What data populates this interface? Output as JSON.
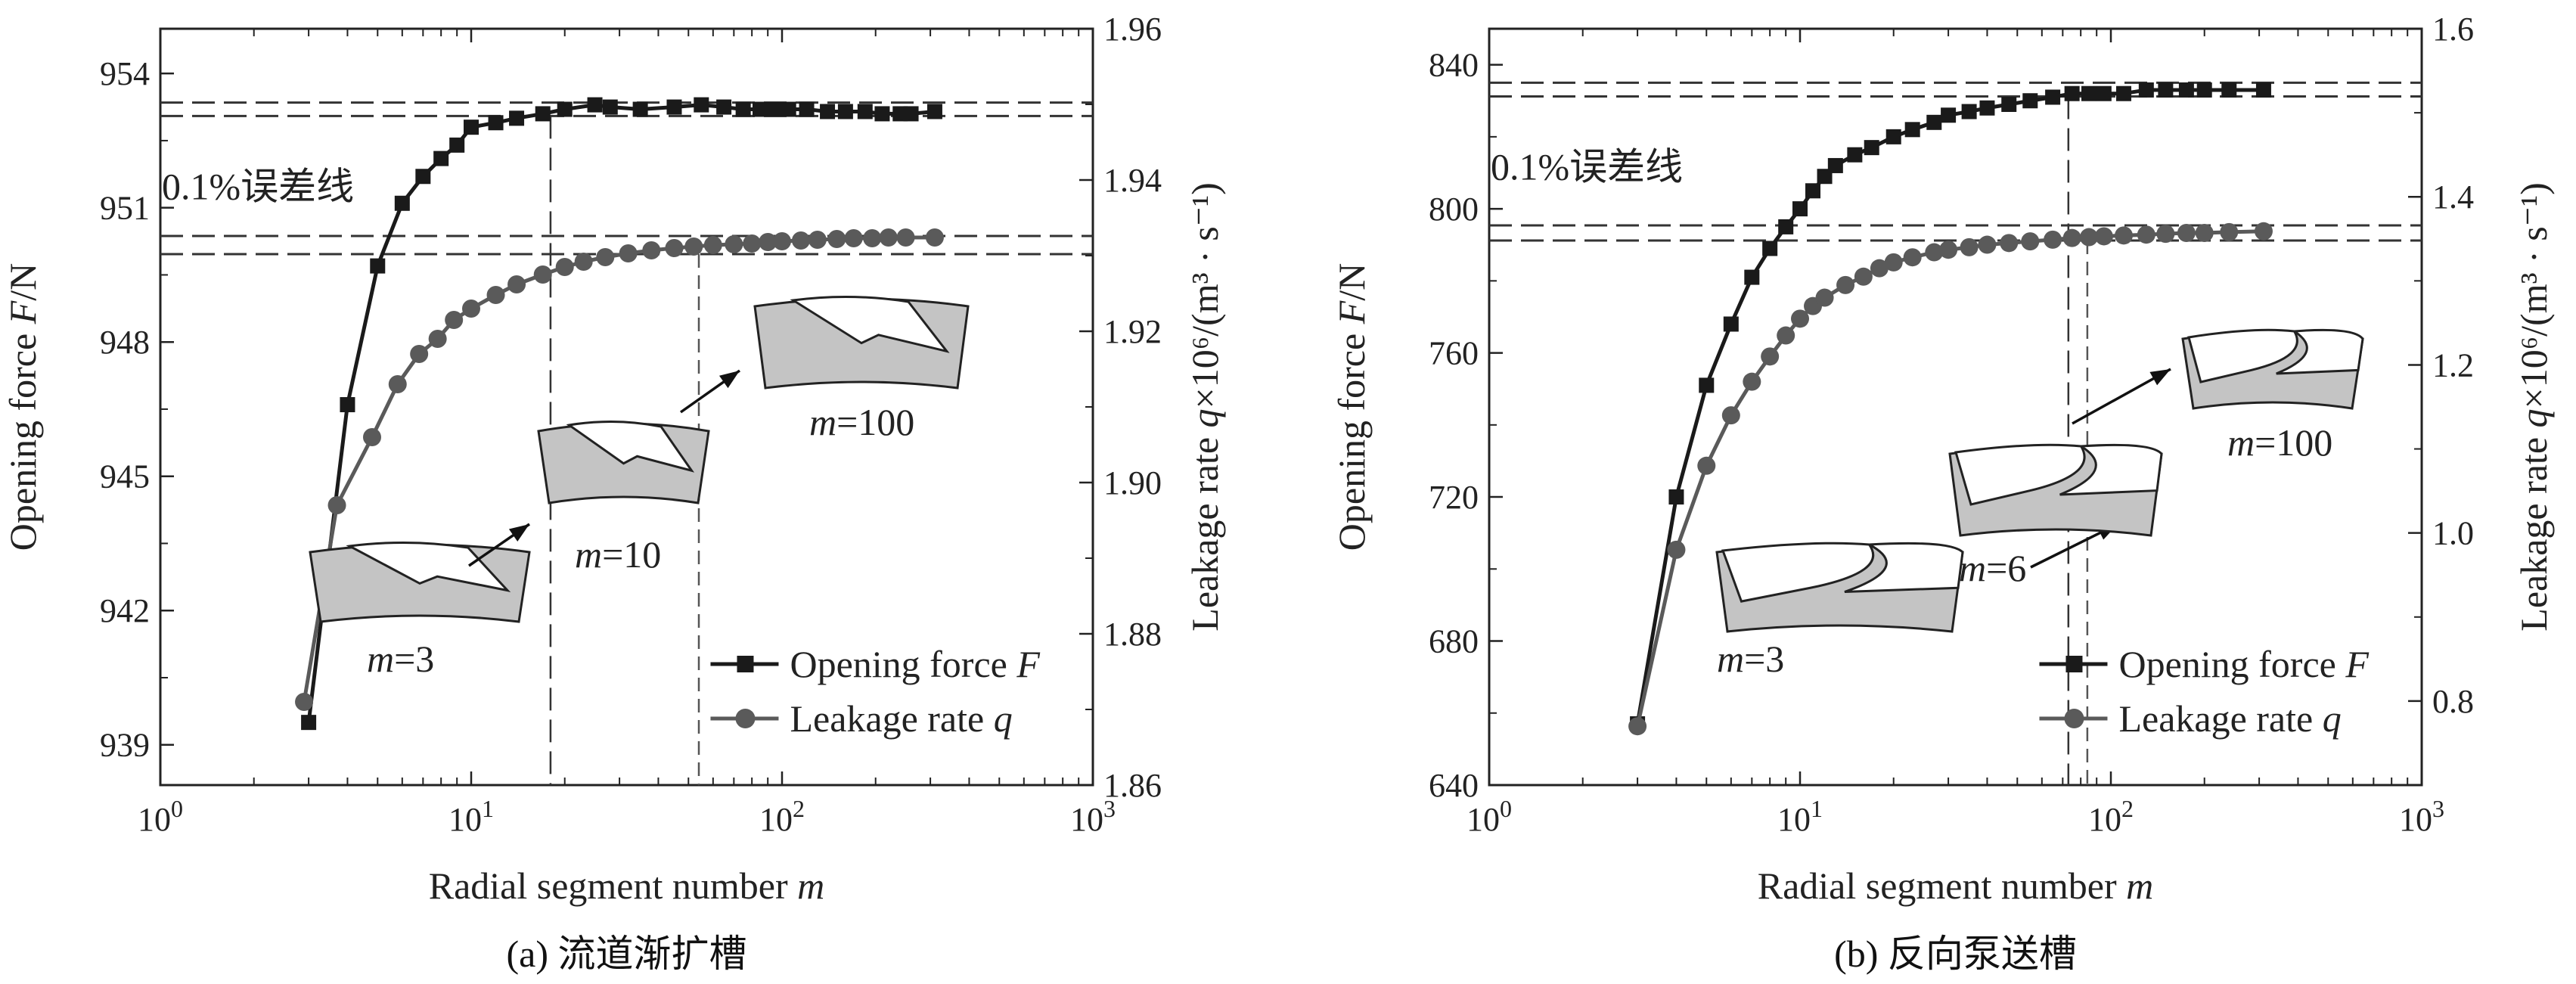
{
  "chart_data": [
    {
      "type": "line",
      "panel_caption": "(a) 流道渐扩槽",
      "xlabel_text": "Radial segment number ",
      "xlabel_var": "m",
      "xscale": "log",
      "xlim": [
        1,
        1000
      ],
      "x_ticks": [
        {
          "base": "10",
          "exp": "0"
        },
        {
          "base": "10",
          "exp": "1"
        },
        {
          "base": "10",
          "exp": "2"
        },
        {
          "base": "10",
          "exp": "3"
        }
      ],
      "ylabel_left_text": "Opening force ",
      "ylabel_left_var": "F",
      "ylabel_left_unit": "/N",
      "ylim_left": [
        938.1,
        955
      ],
      "yticks_left": [
        "939",
        "942",
        "945",
        "948",
        "951",
        "954"
      ],
      "ylabel_right_text": "Leakage rate ",
      "ylabel_right_var": "q",
      "ylabel_right_unit": "×10⁶/(m³ · s⁻¹)",
      "ylim_right": [
        1.86,
        1.96
      ],
      "yticks_right": [
        "1.86",
        "1.88",
        "1.90",
        "1.92",
        "1.94",
        "1.96"
      ],
      "error_note": "0.1%误差线",
      "error_bands": {
        "left": [
          953.05,
          953.35
        ],
        "right": [
          1.9302,
          1.9326
        ]
      },
      "vlines_x": [
        18,
        54
      ],
      "legend": {
        "position": "bottom-right",
        "items": [
          {
            "text": "Opening force ",
            "var": "F",
            "marker": "square"
          },
          {
            "text": "Leakage rate ",
            "var": "q",
            "marker": "circle"
          }
        ]
      },
      "series": [
        {
          "name": "Opening force F",
          "axis": "left",
          "color": "#1a1a1a",
          "marker": "square",
          "x": [
            3,
            4,
            5,
            6,
            7,
            8,
            9,
            10,
            12,
            14,
            17,
            20,
            25,
            28,
            35,
            45,
            55,
            65,
            75,
            85,
            95,
            105,
            120,
            140,
            160,
            185,
            210,
            240,
            260,
            310
          ],
          "y": [
            939.5,
            946.6,
            949.7,
            951.1,
            951.7,
            952.1,
            952.4,
            952.8,
            952.9,
            953.0,
            953.1,
            953.2,
            953.3,
            953.25,
            953.2,
            953.25,
            953.3,
            953.25,
            953.2,
            953.2,
            953.2,
            953.2,
            953.2,
            953.15,
            953.15,
            953.15,
            953.1,
            953.1,
            953.1,
            953.15
          ]
        },
        {
          "name": "Leakage rate q",
          "axis": "right",
          "color": "#5a5a5a",
          "marker": "circle",
          "x": [
            2.9,
            3.7,
            4.8,
            5.8,
            6.8,
            7.8,
            8.8,
            10,
            12,
            14,
            17,
            20,
            23,
            27,
            32,
            38,
            45,
            52,
            60,
            70,
            80,
            90,
            100,
            115,
            130,
            150,
            170,
            195,
            220,
            250,
            310
          ],
          "y": [
            1.871,
            1.897,
            1.906,
            1.913,
            1.917,
            1.919,
            1.9215,
            1.923,
            1.9248,
            1.9262,
            1.9275,
            1.9285,
            1.9292,
            1.9298,
            1.9303,
            1.9307,
            1.931,
            1.9312,
            1.9314,
            1.9315,
            1.9316,
            1.9318,
            1.9319,
            1.932,
            1.9321,
            1.9322,
            1.9323,
            1.9323,
            1.9324,
            1.9324,
            1.9324
          ]
        }
      ],
      "annotations": [
        "m=3",
        "m=10",
        "m=100"
      ]
    },
    {
      "type": "line",
      "panel_caption": "(b) 反向泵送槽",
      "xlabel_text": "Radial segment number ",
      "xlabel_var": "m",
      "xscale": "log",
      "xlim": [
        1,
        1000
      ],
      "x_ticks": [
        {
          "base": "10",
          "exp": "0"
        },
        {
          "base": "10",
          "exp": "1"
        },
        {
          "base": "10",
          "exp": "2"
        },
        {
          "base": "10",
          "exp": "3"
        }
      ],
      "ylabel_left_text": "Opening force ",
      "ylabel_left_var": "F",
      "ylabel_left_unit": "/N",
      "ylim_left": [
        640,
        850
      ],
      "yticks_left": [
        "640",
        "680",
        "720",
        "760",
        "800",
        "840"
      ],
      "ylabel_right_text": "Leakage rate ",
      "ylabel_right_var": "q",
      "ylabel_right_unit": "×10⁶/(m³ · s⁻¹)",
      "ylim_right": [
        0.7,
        1.6
      ],
      "yticks_right": [
        "0.8",
        "1.0",
        "1.2",
        "1.4",
        "1.6"
      ],
      "error_note": "0.1%误差线",
      "error_bands": {
        "left": [
          831.2,
          835.0
        ],
        "right": [
          1.348,
          1.366
        ]
      },
      "vlines_x": [
        73,
        84
      ],
      "legend": {
        "position": "bottom-right",
        "items": [
          {
            "text": "Opening force ",
            "var": "F",
            "marker": "square"
          },
          {
            "text": "Leakage rate ",
            "var": "q",
            "marker": "circle"
          }
        ]
      },
      "series": [
        {
          "name": "Opening force F",
          "axis": "left",
          "color": "#1a1a1a",
          "marker": "square",
          "x": [
            3,
            4,
            5,
            6,
            7,
            8,
            9,
            10,
            11,
            12,
            13,
            15,
            17,
            20,
            23,
            27,
            30,
            35,
            40,
            47,
            55,
            65,
            75,
            85,
            95,
            110,
            130,
            150,
            175,
            200,
            240,
            310
          ],
          "y": [
            657,
            720,
            751,
            768,
            781,
            789,
            795,
            800,
            805,
            809,
            812,
            815,
            817,
            820,
            822,
            824,
            826,
            827,
            828,
            829,
            830,
            831,
            832,
            832,
            832,
            832,
            833,
            833,
            833,
            833,
            833,
            833
          ]
        },
        {
          "name": "Leakage rate q",
          "axis": "right",
          "color": "#5a5a5a",
          "marker": "circle",
          "x": [
            3,
            4,
            5,
            6,
            7,
            8,
            9,
            10,
            11,
            12,
            14,
            16,
            18,
            20,
            23,
            27,
            30,
            35,
            40,
            47,
            55,
            65,
            75,
            85,
            95,
            110,
            130,
            150,
            175,
            200,
            240,
            310
          ],
          "y": [
            0.77,
            0.98,
            1.08,
            1.14,
            1.18,
            1.21,
            1.235,
            1.255,
            1.27,
            1.28,
            1.295,
            1.305,
            1.315,
            1.322,
            1.328,
            1.334,
            1.337,
            1.34,
            1.343,
            1.345,
            1.347,
            1.349,
            1.351,
            1.352,
            1.353,
            1.354,
            1.355,
            1.356,
            1.357,
            1.357,
            1.358,
            1.359
          ]
        }
      ],
      "annotations": [
        "m=3",
        "m=6",
        "m=100"
      ]
    }
  ]
}
